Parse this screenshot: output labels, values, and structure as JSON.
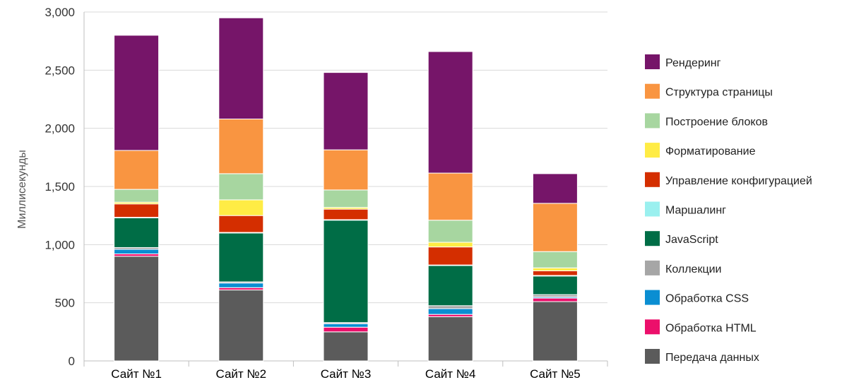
{
  "chart_data": {
    "type": "bar",
    "stacked": true,
    "title": "",
    "xlabel": "",
    "ylabel": "Миллисекунды",
    "ylim": [
      0,
      3000
    ],
    "yticks": [
      0,
      500,
      1000,
      1500,
      2000,
      2500,
      3000
    ],
    "ytick_labels": [
      "0",
      "500",
      "1,000",
      "1,500",
      "2,000",
      "2,500",
      "3,000"
    ],
    "grid": true,
    "legend_position": "right",
    "categories": [
      "Сайт №1",
      "Сайт №2",
      "Сайт №3",
      "Сайт №4",
      "Сайт №5"
    ],
    "series": [
      {
        "name": "Передача данных",
        "color": "#5b5b5b",
        "values": [
          900,
          610,
          250,
          380,
          510
        ]
      },
      {
        "name": "Обработка HTML",
        "color": "#ec0f6b",
        "values": [
          20,
          20,
          40,
          20,
          30
        ]
      },
      {
        "name": "Обработка CSS",
        "color": "#0a8ed2",
        "values": [
          40,
          40,
          30,
          50,
          10
        ]
      },
      {
        "name": "Коллекции",
        "color": "#a6a6a6",
        "values": [
          15,
          10,
          10,
          25,
          20
        ]
      },
      {
        "name": "JavaScript",
        "color": "#006d46",
        "values": [
          255,
          420,
          880,
          345,
          160
        ]
      },
      {
        "name": "Маршалинг",
        "color": "#9af0ef",
        "values": [
          5,
          5,
          5,
          5,
          5
        ]
      },
      {
        "name": "Управление конфигурацией",
        "color": "#d42e00",
        "values": [
          115,
          145,
          90,
          155,
          40
        ]
      },
      {
        "name": "Форматирование",
        "color": "#ffec45",
        "values": [
          15,
          135,
          15,
          40,
          25
        ]
      },
      {
        "name": "Построение блоков",
        "color": "#a7d6a0",
        "values": [
          110,
          225,
          150,
          190,
          140
        ]
      },
      {
        "name": "Структура страницы",
        "color": "#f99541",
        "values": [
          335,
          470,
          345,
          405,
          415
        ]
      },
      {
        "name": "Рендеринг",
        "color": "#761569",
        "values": [
          990,
          870,
          665,
          1045,
          255
        ]
      }
    ]
  }
}
